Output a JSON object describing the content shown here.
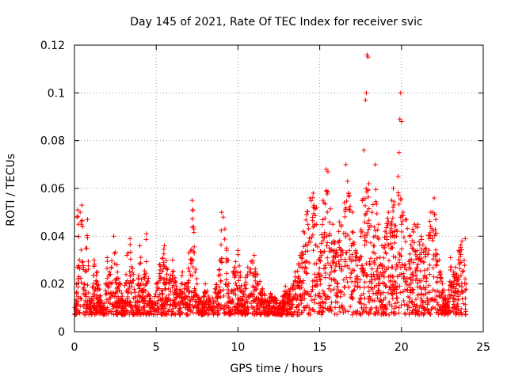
{
  "chart_data": {
    "type": "scatter",
    "title": "Day 145 of 2021, Rate Of TEC Index for receiver svic",
    "xlabel": "GPS time / hours",
    "ylabel": "ROTI / TECUs",
    "xlim": [
      0,
      25
    ],
    "ylim": [
      0,
      0.12
    ],
    "x_ticks": [
      0,
      5,
      10,
      15,
      20,
      25
    ],
    "x_tick_labels": [
      "0",
      "5",
      "10",
      "15",
      "20",
      "25"
    ],
    "y_ticks": [
      0,
      0.02,
      0.04,
      0.06,
      0.08,
      0.1,
      0.12
    ],
    "y_tick_labels": [
      "0",
      "0.02",
      "0.04",
      "0.06",
      "0.08",
      "0.1",
      "0.12"
    ],
    "grid": true,
    "marker": "plus",
    "marker_color": "#ff0000",
    "series": [
      {
        "name": "ROTI",
        "description": "dense scatter of ROTI samples across all satellites; envelope points listed below",
        "points": [
          [
            0.1,
            0.012
          ],
          [
            0.15,
            0.048
          ],
          [
            0.2,
            0.051
          ],
          [
            0.25,
            0.045
          ],
          [
            0.3,
            0.03
          ],
          [
            0.35,
            0.05
          ],
          [
            0.45,
            0.053
          ],
          [
            0.5,
            0.044
          ],
          [
            0.6,
            0.02
          ],
          [
            0.7,
            0.035
          ],
          [
            0.8,
            0.047
          ],
          [
            0.9,
            0.014
          ],
          [
            1.0,
            0.012
          ],
          [
            1.2,
            0.03
          ],
          [
            1.4,
            0.025
          ],
          [
            1.6,
            0.015
          ],
          [
            1.8,
            0.009
          ],
          [
            2.0,
            0.031
          ],
          [
            2.2,
            0.024
          ],
          [
            2.4,
            0.04
          ],
          [
            2.6,
            0.028
          ],
          [
            2.8,
            0.02
          ],
          [
            3.0,
            0.012
          ],
          [
            3.2,
            0.032
          ],
          [
            3.4,
            0.039
          ],
          [
            3.6,
            0.024
          ],
          [
            3.8,
            0.01
          ],
          [
            4.0,
            0.036
          ],
          [
            4.2,
            0.02
          ],
          [
            4.4,
            0.041
          ],
          [
            4.6,
            0.015
          ],
          [
            4.8,
            0.012
          ],
          [
            5.0,
            0.02
          ],
          [
            5.2,
            0.028
          ],
          [
            5.5,
            0.036
          ],
          [
            5.8,
            0.022
          ],
          [
            6.0,
            0.03
          ],
          [
            6.3,
            0.016
          ],
          [
            6.6,
            0.025
          ],
          [
            6.9,
            0.018
          ],
          [
            7.0,
            0.033
          ],
          [
            7.2,
            0.055
          ],
          [
            7.25,
            0.051
          ],
          [
            7.3,
            0.043
          ],
          [
            7.5,
            0.02
          ],
          [
            7.8,
            0.012
          ],
          [
            8.0,
            0.02
          ],
          [
            8.3,
            0.013
          ],
          [
            8.6,
            0.018
          ],
          [
            8.9,
            0.03
          ],
          [
            9.0,
            0.05
          ],
          [
            9.1,
            0.048
          ],
          [
            9.2,
            0.043
          ],
          [
            9.3,
            0.035
          ],
          [
            9.4,
            0.03
          ],
          [
            9.5,
            0.008
          ],
          [
            9.7,
            0.025
          ],
          [
            10.0,
            0.034
          ],
          [
            10.3,
            0.017
          ],
          [
            10.6,
            0.027
          ],
          [
            11.0,
            0.032
          ],
          [
            11.2,
            0.024
          ],
          [
            11.5,
            0.018
          ],
          [
            11.8,
            0.013
          ],
          [
            12.0,
            0.016
          ],
          [
            12.3,
            0.014
          ],
          [
            12.6,
            0.012
          ],
          [
            12.9,
            0.019
          ],
          [
            13.2,
            0.018
          ],
          [
            13.5,
            0.025
          ],
          [
            13.8,
            0.032
          ],
          [
            14.0,
            0.042
          ],
          [
            14.2,
            0.049
          ],
          [
            14.4,
            0.056
          ],
          [
            14.6,
            0.058
          ],
          [
            14.8,
            0.052
          ],
          [
            15.0,
            0.03
          ],
          [
            15.2,
            0.055
          ],
          [
            15.4,
            0.068
          ],
          [
            15.5,
            0.067
          ],
          [
            15.8,
            0.045
          ],
          [
            16.0,
            0.034
          ],
          [
            16.2,
            0.046
          ],
          [
            16.5,
            0.054
          ],
          [
            16.6,
            0.07
          ],
          [
            16.7,
            0.063
          ],
          [
            16.8,
            0.057
          ],
          [
            17.0,
            0.05
          ],
          [
            17.2,
            0.034
          ],
          [
            17.4,
            0.03
          ],
          [
            17.6,
            0.055
          ],
          [
            17.7,
            0.076
          ],
          [
            17.8,
            0.097
          ],
          [
            17.85,
            0.1
          ],
          [
            17.9,
            0.116
          ],
          [
            17.95,
            0.115
          ],
          [
            18.0,
            0.062
          ],
          [
            18.2,
            0.05
          ],
          [
            18.4,
            0.07
          ],
          [
            18.6,
            0.045
          ],
          [
            18.8,
            0.036
          ],
          [
            19.0,
            0.042
          ],
          [
            19.2,
            0.05
          ],
          [
            19.4,
            0.055
          ],
          [
            19.5,
            0.06
          ],
          [
            19.7,
            0.04
          ],
          [
            19.8,
            0.065
          ],
          [
            19.85,
            0.075
          ],
          [
            19.9,
            0.089
          ],
          [
            19.95,
            0.1
          ],
          [
            20.0,
            0.088
          ],
          [
            20.1,
            0.05
          ],
          [
            20.3,
            0.047
          ],
          [
            20.5,
            0.04
          ],
          [
            20.8,
            0.045
          ],
          [
            21.0,
            0.045
          ],
          [
            21.2,
            0.04
          ],
          [
            21.5,
            0.035
          ],
          [
            21.8,
            0.05
          ],
          [
            22.0,
            0.056
          ],
          [
            22.1,
            0.047
          ],
          [
            22.3,
            0.03
          ],
          [
            22.5,
            0.02
          ],
          [
            22.8,
            0.012
          ],
          [
            23.0,
            0.031
          ],
          [
            23.2,
            0.025
          ],
          [
            23.5,
            0.034
          ],
          [
            23.7,
            0.038
          ],
          [
            23.9,
            0.039
          ],
          [
            23.95,
            0.02
          ]
        ]
      }
    ]
  }
}
